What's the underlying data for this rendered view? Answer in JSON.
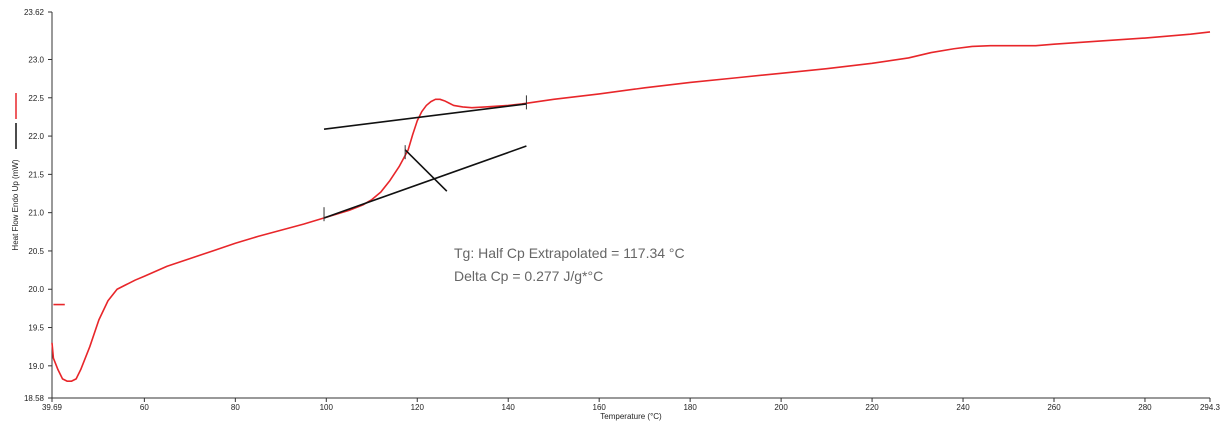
{
  "chart_data": {
    "type": "line",
    "xlabel": "Temperature (°C)",
    "ylabel": "Heat Flow Endo Up (mW)",
    "xlim": [
      39.69,
      294.3
    ],
    "ylim": [
      18.58,
      23.62
    ],
    "x_ticks": [
      "39.69",
      "60",
      "80",
      "100",
      "120",
      "140",
      "160",
      "180",
      "200",
      "220",
      "240",
      "260",
      "280",
      "294.3"
    ],
    "x_tick_values": [
      39.69,
      60,
      80,
      100,
      120,
      140,
      160,
      180,
      200,
      220,
      240,
      260,
      280,
      294.3
    ],
    "y_ticks": [
      "18.58",
      "19.0",
      "19.5",
      "20.0",
      "20.5",
      "21.0",
      "21.5",
      "22.0",
      "22.5",
      "23.0",
      "23.62"
    ],
    "y_tick_values": [
      18.58,
      19.0,
      19.5,
      20.0,
      20.5,
      21.0,
      21.5,
      22.0,
      22.5,
      23.0,
      23.62
    ],
    "series": [
      {
        "color": "#e8262a",
        "points": [
          [
            40.0,
            19.8
          ],
          [
            42.5,
            19.8
          ]
        ]
      },
      {
        "color": "#e8262a",
        "points": [
          [
            39.69,
            19.3
          ],
          [
            40.0,
            19.1
          ],
          [
            41.0,
            18.95
          ],
          [
            42.0,
            18.83
          ],
          [
            43.0,
            18.8
          ],
          [
            44.0,
            18.8
          ],
          [
            45.0,
            18.83
          ],
          [
            46.0,
            18.95
          ],
          [
            48.0,
            19.25
          ],
          [
            50.0,
            19.6
          ],
          [
            52.0,
            19.85
          ],
          [
            54.0,
            20.0
          ],
          [
            56.0,
            20.06
          ],
          [
            58.0,
            20.12
          ],
          [
            60.0,
            20.17
          ],
          [
            65.0,
            20.3
          ],
          [
            70.0,
            20.4
          ],
          [
            75.0,
            20.5
          ],
          [
            80.0,
            20.6
          ],
          [
            85.0,
            20.69
          ],
          [
            90.0,
            20.77
          ],
          [
            95.0,
            20.85
          ],
          [
            100.0,
            20.94
          ],
          [
            105.0,
            21.03
          ],
          [
            108.0,
            21.1
          ],
          [
            110.0,
            21.17
          ],
          [
            112.0,
            21.27
          ],
          [
            114.0,
            21.42
          ],
          [
            116.0,
            21.6
          ],
          [
            118.0,
            21.82
          ],
          [
            119.0,
            22.02
          ],
          [
            120.0,
            22.2
          ],
          [
            121.0,
            22.32
          ],
          [
            122.0,
            22.4
          ],
          [
            123.0,
            22.45
          ],
          [
            124.0,
            22.48
          ],
          [
            125.0,
            22.48
          ],
          [
            126.0,
            22.46
          ],
          [
            127.0,
            22.43
          ],
          [
            128.0,
            22.4
          ],
          [
            130.0,
            22.38
          ],
          [
            132.0,
            22.37
          ],
          [
            135.0,
            22.38
          ],
          [
            140.0,
            22.4
          ],
          [
            143.0,
            22.42
          ],
          [
            150.0,
            22.48
          ],
          [
            160.0,
            22.55
          ],
          [
            170.0,
            22.63
          ],
          [
            180.0,
            22.7
          ],
          [
            190.0,
            22.76
          ],
          [
            200.0,
            22.82
          ],
          [
            210.0,
            22.88
          ],
          [
            220.0,
            22.95
          ],
          [
            228.0,
            23.02
          ],
          [
            233.0,
            23.09
          ],
          [
            238.0,
            23.14
          ],
          [
            242.0,
            23.17
          ],
          [
            246.0,
            23.18
          ],
          [
            250.0,
            23.18
          ],
          [
            256.0,
            23.18
          ],
          [
            260.0,
            23.2
          ],
          [
            270.0,
            23.24
          ],
          [
            280.0,
            23.28
          ],
          [
            290.0,
            23.33
          ],
          [
            294.3,
            23.36
          ]
        ]
      }
    ],
    "baselines": [
      {
        "from": [
          99.5,
          22.09
        ],
        "to": [
          144.0,
          22.42
        ],
        "color": "#111111"
      },
      {
        "from": [
          99.5,
          20.93
        ],
        "to": [
          144.0,
          21.87
        ],
        "color": "#111111"
      },
      {
        "from": [
          117.34,
          21.82
        ],
        "to": [
          126.5,
          21.28
        ],
        "color": "#111111"
      }
    ],
    "markers": [
      {
        "x": 99.5,
        "y": 20.98,
        "color": "#333333"
      },
      {
        "x": 144.0,
        "y": 22.44,
        "color": "#333333"
      },
      {
        "x": 117.34,
        "y": 21.79,
        "color": "#333333"
      }
    ],
    "annotations": [
      "Tg: Half Cp Extrapolated = 117.34 °C",
      "Delta Cp = 0.277 J/g*°C"
    ],
    "legend": [
      {
        "color": "#e8262a"
      },
      {
        "color": "#111111"
      }
    ],
    "grid": false
  }
}
